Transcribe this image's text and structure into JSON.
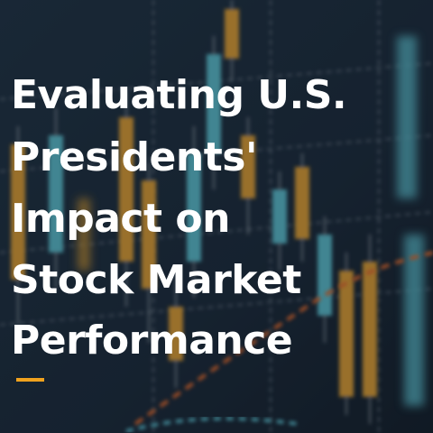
{
  "title_lines": [
    "Evaluating U.S.",
    "Presidents'",
    "Impact on",
    "Stock Market",
    "Performance"
  ]
}
